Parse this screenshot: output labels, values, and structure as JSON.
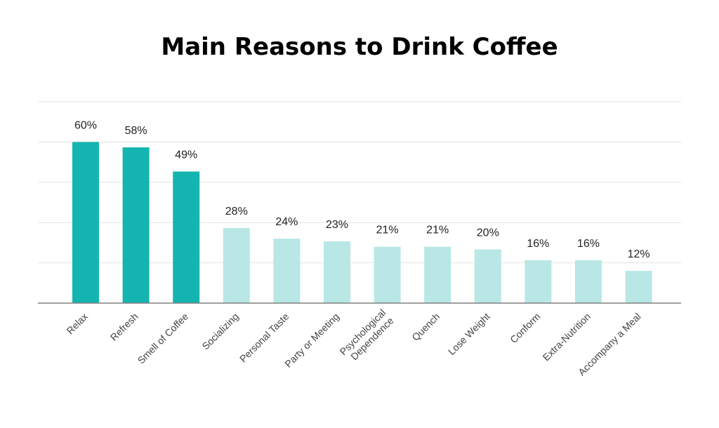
{
  "chart_data": {
    "type": "bar",
    "title": "Main Reasons to Drink Coffee",
    "xlabel": "",
    "ylabel": "",
    "ylim": [
      0,
      75
    ],
    "grid": true,
    "categories": [
      "Relax",
      "Refresh",
      "Smell of Coffee",
      "Socializing",
      "Personal Taste",
      "Party or Meeting",
      "Psychological Dependence",
      "Quench",
      "Lose Weight",
      "Conform",
      "Extra-Nutrition",
      "Accompany a Meal"
    ],
    "values": [
      60,
      58,
      49,
      28,
      24,
      23,
      21,
      21,
      20,
      16,
      16,
      12
    ],
    "value_labels": [
      "60%",
      "58%",
      "49%",
      "28%",
      "24%",
      "23%",
      "21%",
      "21%",
      "20%",
      "16%",
      "16%",
      "12%"
    ],
    "colors": {
      "highlight": "#14b5b0",
      "base": "#b9e7e5"
    },
    "highlight_count": 3
  }
}
